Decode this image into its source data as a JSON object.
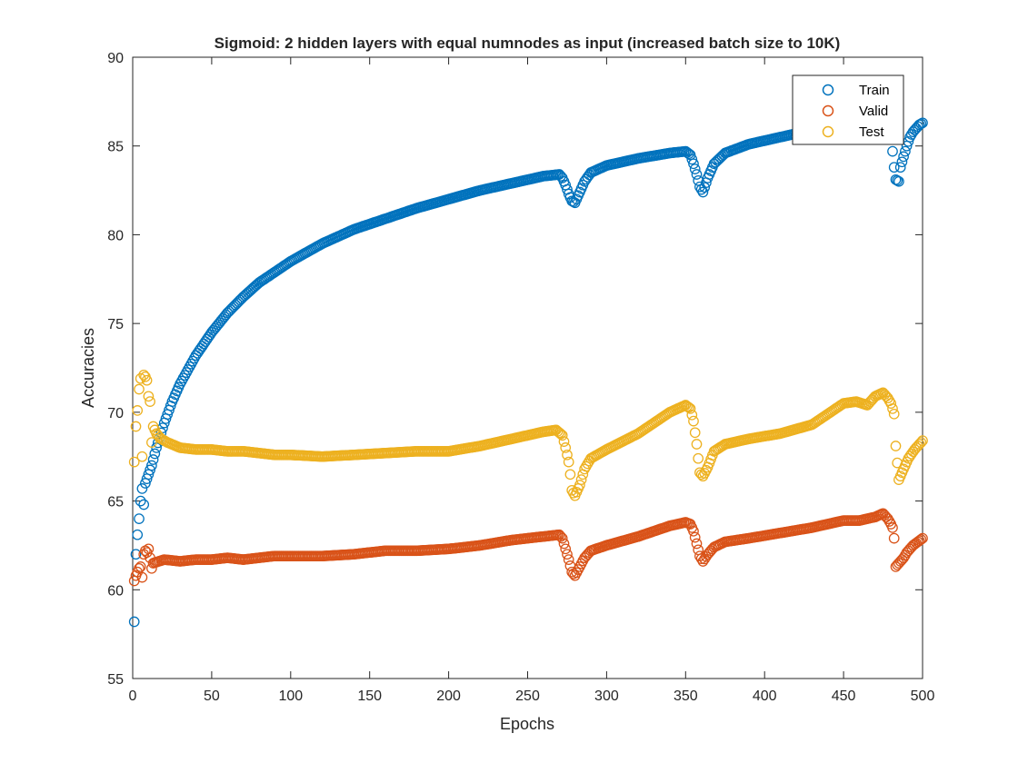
{
  "chart_data": {
    "type": "scatter",
    "title": "Sigmoid: 2 hidden layers with equal numnodes as input (increased batch size to 10K)",
    "xlabel": "Epochs",
    "ylabel": "Accuracies",
    "xlim": [
      0,
      500
    ],
    "ylim": [
      55,
      90
    ],
    "xticks": [
      "0",
      "50",
      "100",
      "150",
      "200",
      "250",
      "300",
      "350",
      "400",
      "450",
      "500"
    ],
    "yticks": [
      "55",
      "60",
      "65",
      "70",
      "75",
      "80",
      "85",
      "90"
    ],
    "grid": false,
    "legend_position": "top-right",
    "marker": "open-circle",
    "series": [
      {
        "name": "Train",
        "color": "#0072BD",
        "points": [
          [
            1,
            58.2
          ],
          [
            2,
            62.0
          ],
          [
            3,
            63.1
          ],
          [
            4,
            64.0
          ],
          [
            5,
            65.0
          ],
          [
            6,
            65.7
          ],
          [
            7,
            64.8
          ],
          [
            8,
            66.0
          ],
          [
            10,
            66.5
          ],
          [
            12,
            67.0
          ],
          [
            15,
            68.0
          ],
          [
            20,
            69.4
          ],
          [
            25,
            70.6
          ],
          [
            30,
            71.6
          ],
          [
            40,
            73.2
          ],
          [
            50,
            74.5
          ],
          [
            60,
            75.6
          ],
          [
            70,
            76.5
          ],
          [
            80,
            77.3
          ],
          [
            90,
            77.9
          ],
          [
            100,
            78.5
          ],
          [
            120,
            79.5
          ],
          [
            140,
            80.3
          ],
          [
            160,
            80.9
          ],
          [
            180,
            81.5
          ],
          [
            200,
            82.0
          ],
          [
            220,
            82.5
          ],
          [
            240,
            82.9
          ],
          [
            260,
            83.3
          ],
          [
            270,
            83.4
          ],
          [
            272,
            83.2
          ],
          [
            274,
            82.8
          ],
          [
            276,
            82.3
          ],
          [
            278,
            81.9
          ],
          [
            280,
            81.8
          ],
          [
            283,
            82.4
          ],
          [
            286,
            83.0
          ],
          [
            290,
            83.5
          ],
          [
            300,
            83.9
          ],
          [
            320,
            84.3
          ],
          [
            340,
            84.6
          ],
          [
            350,
            84.7
          ],
          [
            353,
            84.5
          ],
          [
            355,
            84.0
          ],
          [
            357,
            83.4
          ],
          [
            359,
            82.7
          ],
          [
            361,
            82.4
          ],
          [
            364,
            83.2
          ],
          [
            368,
            84.0
          ],
          [
            375,
            84.6
          ],
          [
            390,
            85.1
          ],
          [
            410,
            85.5
          ],
          [
            420,
            85.7
          ]
        ]
      },
      {
        "name": "Train",
        "color": "#0072BD",
        "points": [
          [
            481,
            84.7
          ],
          [
            482,
            83.8
          ],
          [
            483,
            83.1
          ],
          [
            485,
            83.0
          ],
          [
            486,
            83.8
          ],
          [
            488,
            84.4
          ],
          [
            490,
            85.0
          ],
          [
            492,
            85.5
          ],
          [
            494,
            85.8
          ],
          [
            496,
            86.0
          ],
          [
            498,
            86.2
          ],
          [
            500,
            86.3
          ]
        ]
      },
      {
        "name": "Valid",
        "color": "#D95319",
        "points": [
          [
            1,
            60.5
          ],
          [
            2,
            60.8
          ],
          [
            3,
            61.0
          ],
          [
            4,
            61.2
          ],
          [
            5,
            61.3
          ],
          [
            6,
            60.7
          ],
          [
            7,
            62.0
          ],
          [
            8,
            62.2
          ],
          [
            9,
            62.1
          ],
          [
            10,
            62.3
          ],
          [
            11,
            61.8
          ],
          [
            12,
            61.2
          ],
          [
            13,
            61.5
          ],
          [
            20,
            61.7
          ],
          [
            30,
            61.6
          ],
          [
            40,
            61.7
          ],
          [
            50,
            61.7
          ],
          [
            60,
            61.8
          ],
          [
            70,
            61.7
          ],
          [
            80,
            61.8
          ],
          [
            90,
            61.9
          ],
          [
            100,
            61.9
          ],
          [
            120,
            61.9
          ],
          [
            140,
            62.0
          ],
          [
            160,
            62.2
          ],
          [
            180,
            62.2
          ],
          [
            200,
            62.3
          ],
          [
            220,
            62.5
          ],
          [
            240,
            62.8
          ],
          [
            260,
            63.0
          ],
          [
            270,
            63.1
          ],
          [
            272,
            62.9
          ],
          [
            274,
            62.3
          ],
          [
            276,
            61.7
          ],
          [
            278,
            61.0
          ],
          [
            280,
            60.8
          ],
          [
            283,
            61.3
          ],
          [
            286,
            61.8
          ],
          [
            290,
            62.2
          ],
          [
            300,
            62.5
          ],
          [
            320,
            63.0
          ],
          [
            340,
            63.6
          ],
          [
            350,
            63.8
          ],
          [
            353,
            63.7
          ],
          [
            355,
            63.3
          ],
          [
            357,
            62.6
          ],
          [
            359,
            61.9
          ],
          [
            361,
            61.6
          ],
          [
            364,
            62.0
          ],
          [
            368,
            62.4
          ],
          [
            375,
            62.7
          ],
          [
            390,
            62.9
          ],
          [
            410,
            63.2
          ],
          [
            430,
            63.5
          ],
          [
            450,
            63.9
          ],
          [
            460,
            63.9
          ],
          [
            470,
            64.1
          ],
          [
            475,
            64.3
          ],
          [
            478,
            64.0
          ],
          [
            480,
            63.7
          ],
          [
            481,
            63.5
          ],
          [
            482,
            62.9
          ],
          [
            483,
            61.3
          ],
          [
            485,
            61.5
          ],
          [
            488,
            61.8
          ],
          [
            490,
            62.1
          ],
          [
            494,
            62.5
          ],
          [
            500,
            62.9
          ]
        ]
      },
      {
        "name": "Test",
        "color": "#EDB120",
        "points": [
          [
            1,
            67.2
          ],
          [
            2,
            69.2
          ],
          [
            3,
            70.1
          ],
          [
            4,
            71.3
          ],
          [
            5,
            71.9
          ],
          [
            6,
            67.5
          ],
          [
            7,
            72.1
          ],
          [
            8,
            72.0
          ],
          [
            9,
            71.8
          ],
          [
            10,
            70.9
          ],
          [
            11,
            70.6
          ],
          [
            12,
            68.3
          ],
          [
            13,
            69.2
          ],
          [
            15,
            68.8
          ],
          [
            18,
            68.5
          ],
          [
            22,
            68.3
          ],
          [
            30,
            68.0
          ],
          [
            40,
            67.9
          ],
          [
            50,
            67.9
          ],
          [
            60,
            67.8
          ],
          [
            70,
            67.8
          ],
          [
            80,
            67.7
          ],
          [
            90,
            67.6
          ],
          [
            100,
            67.6
          ],
          [
            120,
            67.5
          ],
          [
            140,
            67.6
          ],
          [
            160,
            67.7
          ],
          [
            180,
            67.8
          ],
          [
            200,
            67.8
          ],
          [
            220,
            68.1
          ],
          [
            240,
            68.5
          ],
          [
            260,
            68.9
          ],
          [
            268,
            69.0
          ],
          [
            272,
            68.7
          ],
          [
            274,
            68.0
          ],
          [
            276,
            67.2
          ],
          [
            277,
            66.5
          ],
          [
            278,
            65.6
          ],
          [
            280,
            65.3
          ],
          [
            283,
            65.9
          ],
          [
            286,
            66.8
          ],
          [
            290,
            67.4
          ],
          [
            300,
            67.9
          ],
          [
            320,
            68.8
          ],
          [
            340,
            70.0
          ],
          [
            350,
            70.4
          ],
          [
            353,
            70.2
          ],
          [
            355,
            69.5
          ],
          [
            357,
            68.2
          ],
          [
            359,
            66.6
          ],
          [
            361,
            66.4
          ],
          [
            364,
            66.9
          ],
          [
            368,
            67.8
          ],
          [
            375,
            68.2
          ],
          [
            390,
            68.5
          ],
          [
            410,
            68.8
          ],
          [
            430,
            69.3
          ],
          [
            450,
            70.5
          ],
          [
            458,
            70.6
          ],
          [
            465,
            70.4
          ],
          [
            470,
            70.9
          ],
          [
            475,
            71.1
          ],
          [
            478,
            70.8
          ],
          [
            480,
            70.5
          ],
          [
            482,
            69.9
          ],
          [
            483,
            68.1
          ],
          [
            485,
            66.2
          ],
          [
            488,
            66.8
          ],
          [
            491,
            67.4
          ],
          [
            495,
            67.9
          ],
          [
            500,
            68.4
          ]
        ]
      }
    ],
    "legend": [
      {
        "label": "Train",
        "color": "#0072BD"
      },
      {
        "label": "Valid",
        "color": "#D95319"
      },
      {
        "label": "Test",
        "color": "#EDB120"
      }
    ]
  }
}
